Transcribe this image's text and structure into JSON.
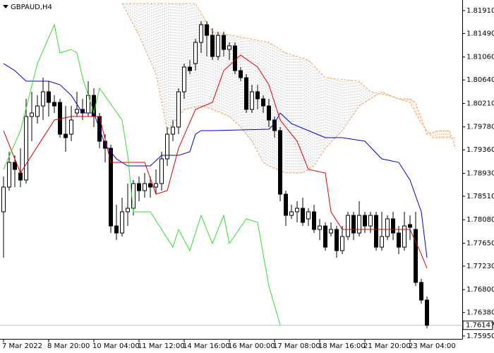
{
  "chart_data": {
    "type": "candlestick",
    "title": "GBPAUD,H4",
    "open": [
      1.78225,
      1.78678,
      1.7913,
      1.78936,
      1.78807,
      1.79971,
      1.79971,
      1.80164,
      1.80423,
      1.80229,
      1.80229,
      1.79647,
      1.79647,
      1.80035,
      1.801,
      1.80035,
      1.80358,
      1.79971,
      1.79518,
      1.79389,
      1.77966,
      1.77837,
      1.78225,
      1.7829,
      1.78742,
      1.78613,
      1.78742,
      1.78678,
      1.78742,
      1.79195,
      1.79647,
      1.79777,
      1.80423,
      1.80876,
      1.8094,
      1.81328,
      1.81651,
      1.81457,
      1.8107,
      1.81457,
      1.81199,
      1.81264,
      1.80811,
      1.80682,
      1.801,
      1.80423,
      1.80294,
      1.80164,
      1.79906,
      1.79712,
      1.78548,
      1.7816,
      1.78225,
      1.7829,
      1.78096,
      1.78225,
      1.77902,
      1.77966,
      1.77837,
      1.77902,
      1.77514,
      1.77772,
      1.7816,
      1.77837,
      1.7816,
      1.77966,
      1.7816,
      1.77578,
      1.77772,
      1.78096,
      1.77837,
      1.77578,
      1.77992,
      1.77902,
      1.76932,
      1.76609
    ],
    "high": [
      1.78871,
      1.79324,
      1.79259,
      1.79389,
      1.80294,
      1.80423,
      1.80358,
      1.80682,
      1.80617,
      1.80358,
      1.80294,
      1.80164,
      1.80164,
      1.80423,
      1.80294,
      1.80617,
      1.80488,
      1.80035,
      1.79647,
      1.79453,
      1.78354,
      1.78484,
      1.78742,
      1.78807,
      1.78871,
      1.78936,
      1.78871,
      1.79001,
      1.79324,
      1.79777,
      1.79906,
      1.80488,
      1.8094,
      1.81005,
      1.81393,
      1.81716,
      1.81716,
      1.81587,
      1.81522,
      1.81522,
      1.81328,
      1.81328,
      1.80876,
      1.80746,
      1.80552,
      1.80552,
      1.80358,
      1.80294,
      1.79971,
      1.79777,
      1.78613,
      1.78354,
      1.78419,
      1.78484,
      1.7829,
      1.78354,
      1.78096,
      1.78031,
      1.78031,
      1.77966,
      1.77966,
      1.78225,
      1.78225,
      1.78419,
      1.78225,
      1.78225,
      1.78225,
      1.78225,
      1.7816,
      1.78225,
      1.77966,
      1.78225,
      1.7816,
      1.78225,
      1.76997,
      1.76673
    ],
    "low": [
      1.77385,
      1.78613,
      1.78678,
      1.78678,
      1.78742,
      1.79518,
      1.79841,
      1.79906,
      1.79971,
      1.80035,
      1.79583,
      1.79324,
      1.79518,
      1.79971,
      1.79906,
      1.79971,
      1.79777,
      1.79389,
      1.7913,
      1.77837,
      1.77708,
      1.77772,
      1.77966,
      1.7816,
      1.78419,
      1.78484,
      1.78484,
      1.78548,
      1.78613,
      1.79065,
      1.79518,
      1.79647,
      1.80294,
      1.80746,
      1.80811,
      1.81134,
      1.8107,
      1.81005,
      1.81005,
      1.8107,
      1.81005,
      1.80746,
      1.80617,
      1.80035,
      1.80035,
      1.801,
      1.80035,
      1.79777,
      1.79583,
      1.78419,
      1.77966,
      1.78096,
      1.78031,
      1.77966,
      1.77966,
      1.77837,
      1.77708,
      1.77514,
      1.77772,
      1.77385,
      1.77449,
      1.77708,
      1.77708,
      1.77772,
      1.77837,
      1.77837,
      1.77514,
      1.77514,
      1.77708,
      1.77708,
      1.77449,
      1.77514,
      1.77708,
      1.76867,
      1.76544,
      1.76092
    ],
    "close": [
      1.78678,
      1.7913,
      1.79001,
      1.78807,
      1.79971,
      1.80035,
      1.80164,
      1.80423,
      1.80229,
      1.80164,
      1.79647,
      1.79583,
      1.79906,
      1.801,
      1.80035,
      1.80358,
      1.79971,
      1.79518,
      1.79389,
      1.77966,
      1.77837,
      1.78225,
      1.7829,
      1.78742,
      1.78613,
      1.78742,
      1.78678,
      1.78742,
      1.79195,
      1.79647,
      1.79777,
      1.80423,
      1.80876,
      1.80811,
      1.81328,
      1.81651,
      1.81457,
      1.8107,
      1.81457,
      1.81199,
      1.81264,
      1.80811,
      1.80682,
      1.801,
      1.80423,
      1.80294,
      1.80164,
      1.79906,
      1.79712,
      1.78548,
      1.7816,
      1.78225,
      1.7829,
      1.78031,
      1.78225,
      1.77902,
      1.77966,
      1.77578,
      1.77902,
      1.77514,
      1.77772,
      1.7816,
      1.77837,
      1.7816,
      1.77966,
      1.7816,
      1.77578,
      1.77772,
      1.78096,
      1.77837,
      1.77578,
      1.77966,
      1.77941,
      1.76932,
      1.76609,
      1.76147
    ],
    "bull_color": "#ffffff",
    "bear_color": "#000000",
    "series": [
      {
        "color": "#0000cd",
        "x": [
          0,
          2,
          4,
          8,
          10,
          12,
          14,
          16,
          18,
          20,
          22,
          26,
          28,
          31,
          33,
          34,
          35,
          37,
          47,
          48,
          49,
          51,
          54,
          57,
          60,
          64,
          67,
          70,
          72,
          74,
          75
        ],
        "values": [
          1.8094,
          1.80811,
          1.80617,
          1.80617,
          1.80552,
          1.80358,
          1.80035,
          1.80035,
          1.79453,
          1.79195,
          1.79065,
          1.79065,
          1.79259,
          1.79259,
          1.79324,
          1.79647,
          1.79712,
          1.79712,
          1.79738,
          1.79841,
          1.80035,
          1.79841,
          1.79712,
          1.79583,
          1.79583,
          1.79518,
          1.79195,
          1.7913,
          1.78807,
          1.78225,
          1.77385
        ]
      },
      {
        "color": "#dd0000",
        "x": [
          0,
          3,
          9,
          12,
          17,
          19,
          25,
          27,
          29,
          31,
          34,
          37,
          39,
          42,
          45,
          47,
          49,
          52,
          54,
          57,
          58,
          60,
          72,
          74,
          75
        ],
        "values": [
          1.79712,
          1.78936,
          1.79906,
          1.79971,
          1.79971,
          1.7913,
          1.7913,
          1.78548,
          1.78613,
          1.79389,
          1.801,
          1.80229,
          1.80811,
          1.81095,
          1.80876,
          1.80552,
          1.79906,
          1.79518,
          1.79001,
          1.78936,
          1.78225,
          1.77902,
          1.77902,
          1.77449,
          1.77191
        ]
      },
      {
        "color": "#33dd33",
        "x": [
          0,
          3,
          6,
          9,
          10,
          12,
          13,
          14,
          16,
          17,
          21,
          22,
          23,
          26,
          30,
          31,
          33,
          35,
          37,
          39,
          40,
          43,
          45,
          47,
          49
        ],
        "values": [
          1.79001,
          1.79712,
          1.8094,
          1.81651,
          1.81134,
          1.81199,
          1.81134,
          1.80682,
          1.80035,
          1.80488,
          1.79906,
          1.79259,
          1.78225,
          1.78225,
          1.77578,
          1.77902,
          1.77514,
          1.7816,
          1.77643,
          1.7816,
          1.77643,
          1.78096,
          1.78031,
          1.76867,
          1.76156
        ]
      }
    ],
    "cloud": {
      "up_color": "#f4a460",
      "down_color": "#c0c0c0",
      "span_a": {
        "color": "#f4a460",
        "x": [
          21,
          24,
          27,
          29,
          32,
          35,
          37,
          40,
          42,
          44,
          46,
          47,
          50,
          53,
          55,
          57,
          60,
          63,
          65,
          67,
          70,
          72,
          73,
          75,
          77,
          79,
          80
        ],
        "values": [
          1.82039,
          1.81457,
          1.80746,
          1.79712,
          1.801,
          1.80164,
          1.801,
          1.79971,
          1.79777,
          1.79518,
          1.7913,
          1.79065,
          1.78936,
          1.78936,
          1.79065,
          1.79389,
          1.79712,
          1.80164,
          1.80294,
          1.80423,
          1.80294,
          1.80294,
          1.80229,
          1.79647,
          1.79712,
          1.79712,
          1.79389
        ]
      },
      "span_b": {
        "color": "#f4a460",
        "x": [
          21,
          34,
          37,
          47,
          50,
          54,
          57,
          63,
          65,
          68,
          72,
          74,
          76,
          80
        ],
        "values": [
          1.82039,
          1.82039,
          1.81522,
          1.81328,
          1.81134,
          1.81005,
          1.80682,
          1.80617,
          1.80423,
          1.80358,
          1.80229,
          1.79841,
          1.79583,
          1.79583
        ]
      }
    },
    "last_price": 1.76147,
    "xlim": [
      -0.625,
      81.25
    ],
    "xticks": [
      {
        "value": 0,
        "label": "7 Mar 2022"
      },
      {
        "value": 8,
        "label": "8 Mar 20:00"
      },
      {
        "value": 16,
        "label": "10 Mar 04:00"
      },
      {
        "value": 24,
        "label": "11 Mar 12:00"
      },
      {
        "value": 32,
        "label": "14 Mar 16:00"
      },
      {
        "value": 40,
        "label": "16 Mar 00:00"
      },
      {
        "value": 48,
        "label": "17 Mar 08:00"
      },
      {
        "value": 56,
        "label": "18 Mar 16:00"
      },
      {
        "value": 64,
        "label": "21 Mar 20:00"
      },
      {
        "value": 72,
        "label": "23 Mar 04:00"
      }
    ],
    "ylim": [
      1.75898,
      1.82104
    ],
    "yticks": [
      {
        "value": 1.8191,
        "label": "1.81910"
      },
      {
        "value": 1.8149,
        "label": "1.81490"
      },
      {
        "value": 1.8106,
        "label": "1.81060"
      },
      {
        "value": 1.8064,
        "label": "1.80640"
      },
      {
        "value": 1.8021,
        "label": "1.80210"
      },
      {
        "value": 1.7978,
        "label": "1.79780"
      },
      {
        "value": 1.7936,
        "label": "1.79360"
      },
      {
        "value": 1.7893,
        "label": "1.78930"
      },
      {
        "value": 1.7851,
        "label": "1.78510"
      },
      {
        "value": 1.7808,
        "label": "1.78080"
      },
      {
        "value": 1.7765,
        "label": "1.77650"
      },
      {
        "value": 1.7723,
        "label": "1.77230"
      },
      {
        "value": 1.768,
        "label": "1.76800"
      },
      {
        "value": 1.7638,
        "label": "1.76380"
      },
      {
        "value": 1.7595,
        "label": "1.75950"
      }
    ]
  }
}
